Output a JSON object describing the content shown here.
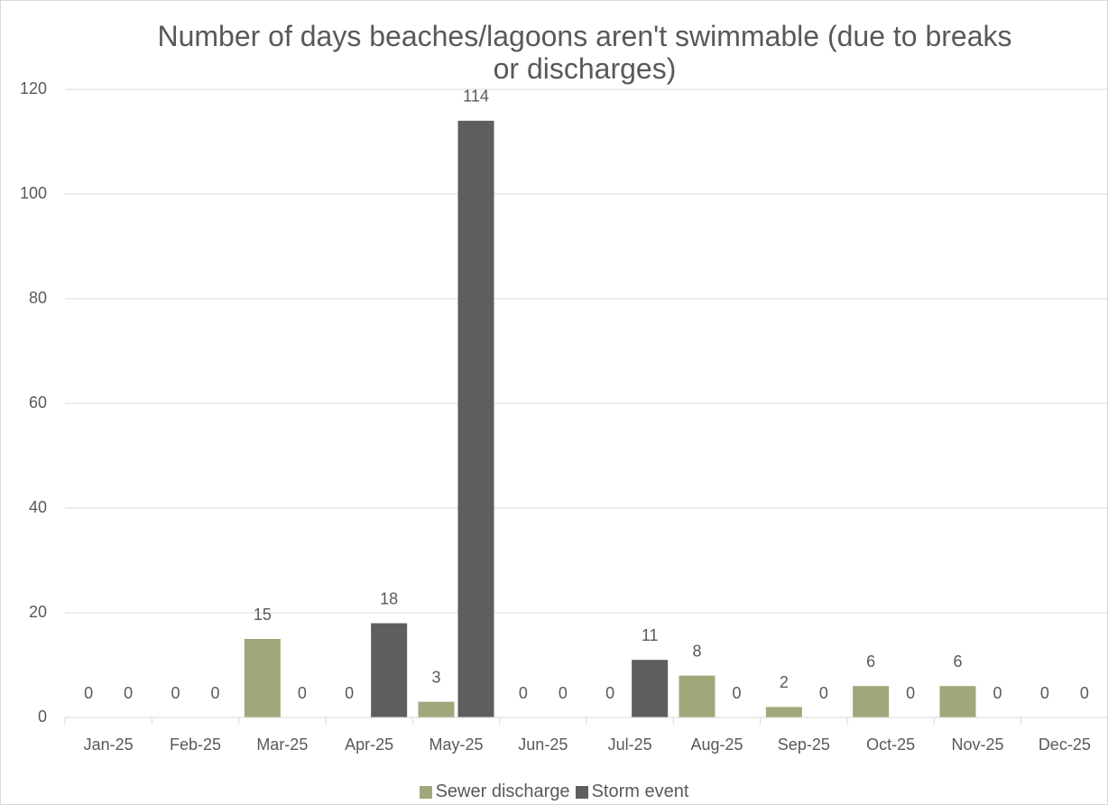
{
  "chart_data": {
    "type": "bar",
    "title": "Number of days beaches/lagoons aren't swimmable (due to breaks or discharges)",
    "categories": [
      "Jan-25",
      "Feb-25",
      "Mar-25",
      "Apr-25",
      "May-25",
      "Jun-25",
      "Jul-25",
      "Aug-25",
      "Sep-25",
      "Oct-25",
      "Nov-25",
      "Dec-25"
    ],
    "series": [
      {
        "name": "Sewer discharge",
        "color": "#9fa87a",
        "values": [
          0,
          0,
          15,
          0,
          3,
          0,
          0,
          8,
          2,
          6,
          6,
          0
        ]
      },
      {
        "name": "Storm event",
        "color": "#5e5e5e",
        "values": [
          0,
          0,
          0,
          18,
          114,
          0,
          11,
          0,
          0,
          0,
          0,
          0
        ]
      }
    ],
    "ylim": [
      0,
      120
    ],
    "yticks": [
      0,
      20,
      40,
      60,
      80,
      100,
      120
    ],
    "grid": true,
    "legend": "bottom"
  }
}
